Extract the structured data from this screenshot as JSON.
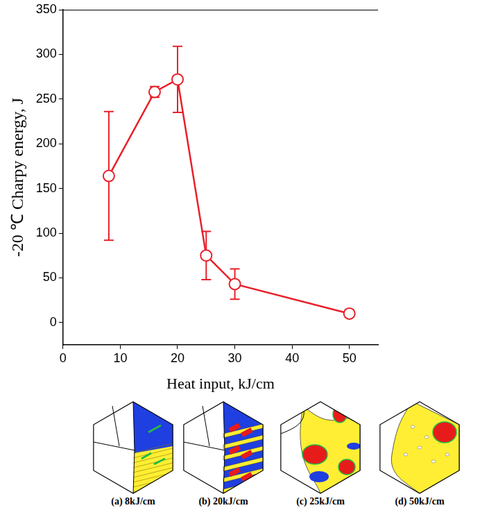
{
  "chart_data": {
    "type": "line",
    "x_label": "Heat input, kJ/cm",
    "y_label": "-20 ℃ Charpy energy, J",
    "x": [
      8,
      16,
      20,
      25,
      30,
      50
    ],
    "values": [
      164,
      258,
      272,
      75,
      43,
      10
    ],
    "errors": [
      72,
      6,
      37,
      27,
      17,
      4
    ],
    "color": "#e8202a",
    "marker": "circle",
    "line_style": "solid",
    "xlim": [
      0,
      55
    ],
    "xticks": [
      0,
      10,
      20,
      30,
      40,
      50
    ],
    "ylim": [
      -25,
      350
    ],
    "yticks": [
      0,
      50,
      100,
      150,
      200,
      250,
      300,
      350
    ],
    "grid": false
  },
  "panels": [
    {
      "caption": "(a) 8kJ/cm"
    },
    {
      "caption": "(b) 20kJ/cm"
    },
    {
      "caption": "(c) 25kJ/cm"
    },
    {
      "caption": "(d) 50kJ/cm"
    }
  ]
}
